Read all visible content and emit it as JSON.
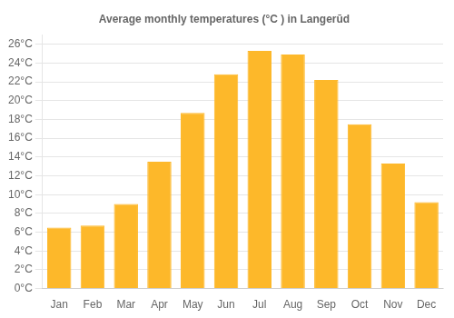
{
  "chart_data": {
    "type": "bar",
    "title": "Average monthly temperatures (°C ) in Langerūd",
    "categories": [
      "Jan",
      "Feb",
      "Mar",
      "Apr",
      "May",
      "Jun",
      "Jul",
      "Aug",
      "Sep",
      "Oct",
      "Nov",
      "Dec"
    ],
    "values": [
      6.5,
      6.7,
      9.0,
      13.5,
      18.7,
      22.8,
      25.3,
      24.9,
      22.2,
      17.5,
      13.3,
      9.2
    ],
    "color": "#FDB82A",
    "ylim": [
      0,
      27
    ],
    "yticks": [
      {
        "value": 0,
        "label": "0°C"
      },
      {
        "value": 2,
        "label": "2°C"
      },
      {
        "value": 4,
        "label": "4°C"
      },
      {
        "value": 6,
        "label": "6°C"
      },
      {
        "value": 8,
        "label": "8°C"
      },
      {
        "value": 10,
        "label": "10°C"
      },
      {
        "value": 12,
        "label": "12°C"
      },
      {
        "value": 14,
        "label": "14°C"
      },
      {
        "value": 16,
        "label": "16°C"
      },
      {
        "value": 18,
        "label": "18°C"
      },
      {
        "value": 20,
        "label": "20°C"
      },
      {
        "value": 22,
        "label": "22°C"
      },
      {
        "value": 24,
        "label": "24°C"
      },
      {
        "value": 26,
        "label": "26°C"
      }
    ],
    "grid": true
  }
}
